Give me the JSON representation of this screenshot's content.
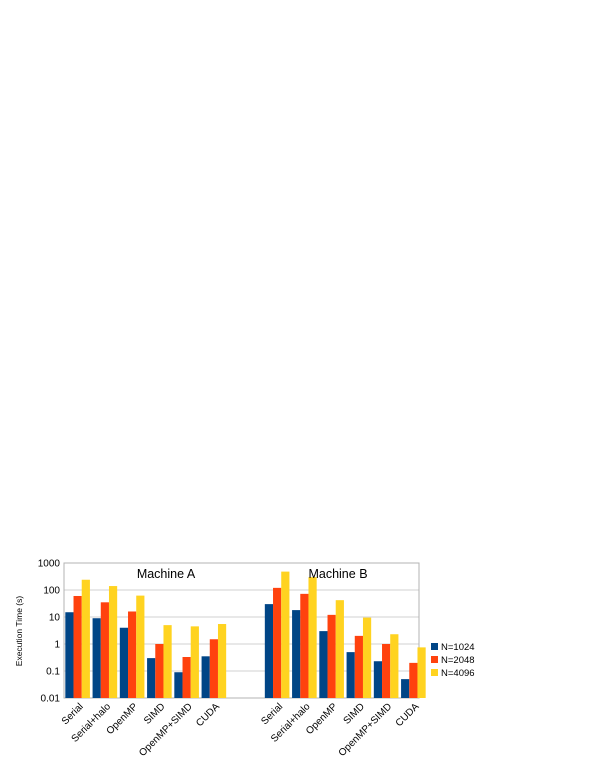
{
  "chart_data": {
    "type": "bar",
    "ylabel": "Execution Time (s)",
    "yscale": "log",
    "ylim": [
      0.01,
      1000
    ],
    "yticks": [
      "0.01",
      "0.1",
      "1",
      "10",
      "100",
      "1000"
    ],
    "grid": true,
    "legend_position": "right",
    "groups": [
      {
        "label": "Machine A",
        "categories": [
          "Serial",
          "Serial+halo",
          "OpenMP",
          "SIMD",
          "OpenMP+SIMD",
          "CUDA"
        ],
        "series": [
          {
            "name": "N=1024",
            "values": [
              15,
              9,
              4,
              0.3,
              0.09,
              0.35
            ]
          },
          {
            "name": "N=2048",
            "values": [
              60,
              35,
              16,
              1.0,
              0.33,
              1.5
            ]
          },
          {
            "name": "N=4096",
            "values": [
              240,
              140,
              62,
              5,
              4.5,
              5.5
            ]
          }
        ]
      },
      {
        "label": "Machine B",
        "categories": [
          "Serial",
          "Serial+halo",
          "OpenMP",
          "SIMD",
          "OpenMP+SIMD",
          "CUDA"
        ],
        "series": [
          {
            "name": "N=1024",
            "values": [
              30,
              18,
              3,
              0.5,
              0.23,
              0.05
            ]
          },
          {
            "name": "N=2048",
            "values": [
              120,
              72,
              12,
              2,
              1.0,
              0.2
            ]
          },
          {
            "name": "N=4096",
            "values": [
              480,
              300,
              42,
              9.5,
              2.3,
              0.75
            ]
          }
        ]
      }
    ],
    "colors": {
      "N=1024": "#004586",
      "N=2048": "#ff420e",
      "N=4096": "#ffd320"
    }
  }
}
